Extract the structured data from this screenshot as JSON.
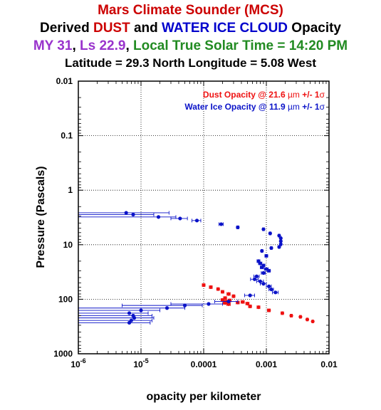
{
  "title": {
    "line1": "Mars Climate Sounder (MCS)",
    "line2_a": "Derived ",
    "line2_b": "DUST",
    "line2_c": " and ",
    "line2_d": "WATER ICE CLOUD",
    "line2_e": " Opacity",
    "line3_a": "MY 31",
    "line3_b": ", ",
    "line3_c": "Ls 22.9",
    "line3_d": ", ",
    "line3_e": "Local True Solar Time = 14:20 PM",
    "line4": "Latitude = 29.3 North   Longitude = 5.08 West"
  },
  "colors": {
    "title_red": "#cc0000",
    "title_blue": "#0000cc",
    "title_purple": "#9933cc",
    "title_green": "#228b22",
    "dust": "#ee1111",
    "ice": "#0a12c8"
  },
  "chart_data": {
    "type": "scatter",
    "xlabel": "opacity per kilometer",
    "ylabel": "Pressure (Pascals)",
    "xscale": "log",
    "yscale": "log",
    "xlim": [
      1e-06,
      0.01
    ],
    "ylim": [
      0.01,
      1000
    ],
    "y_inverted": true,
    "grid": true,
    "legend_position": "top-right",
    "x_ticks": [
      {
        "value": 1e-06,
        "base": "10",
        "exp": "-6"
      },
      {
        "value": 1e-05,
        "base": "10",
        "exp": "-5"
      },
      {
        "value": 0.0001,
        "label": "0.0001"
      },
      {
        "value": 0.001,
        "label": "0.001"
      },
      {
        "value": 0.01,
        "label": "0.01"
      }
    ],
    "y_ticks": [
      {
        "value": 0.01,
        "label": "0.01"
      },
      {
        "value": 0.1,
        "label": "0.1"
      },
      {
        "value": 1,
        "label": "1"
      },
      {
        "value": 10,
        "label": "10"
      },
      {
        "value": 100,
        "label": "100"
      },
      {
        "value": 1000,
        "label": "1000"
      }
    ],
    "series": [
      {
        "name": "Dust Opacity @ 21.6 µm +/- 1σ",
        "legend_text": "Dust Opacity @ 21.6 ",
        "legend_unit": "µm",
        "legend_pm": " +/- 1",
        "legend_sigma": "σ",
        "color": "#ee1111",
        "points": [
          {
            "x": 0.0001,
            "y": 55,
            "xerr": [
              9.5e-05,
              0.000105
            ]
          },
          {
            "x": 0.00013,
            "y": 60,
            "xerr": [
              0.000123,
              0.000137
            ]
          },
          {
            "x": 0.00017,
            "y": 65,
            "xerr": [
              0.000162,
              0.000178
            ]
          },
          {
            "x": 0.0002,
            "y": 73,
            "xerr": [
              0.00019,
              0.00021
            ]
          },
          {
            "x": 0.00025,
            "y": 80,
            "xerr": [
              0.000235,
              0.000265
            ]
          },
          {
            "x": 0.0003,
            "y": 88,
            "xerr": [
              0.000285,
              0.000315
            ]
          },
          {
            "x": 0.00022,
            "y": 95,
            "xerr": [
              0.000208,
              0.000232
            ]
          },
          {
            "x": 0.0002,
            "y": 103,
            "xerr": [
              0.000189,
              0.000211
            ]
          },
          {
            "x": 0.00023,
            "y": 110,
            "xerr": [
              0.000215,
              0.000245
            ]
          },
          {
            "x": 0.00026,
            "y": 105,
            "xerr": [
              0.000245,
              0.000275
            ]
          },
          {
            "x": 0.00022,
            "y": 117,
            "xerr": [
              0.000205,
              0.000235
            ]
          },
          {
            "x": 0.00025,
            "y": 123,
            "xerr": [
              0.000234,
              0.000266
            ]
          },
          {
            "x": 0.00035,
            "y": 115,
            "xerr": [
              0.00033,
              0.00037
            ]
          },
          {
            "x": 0.00042,
            "y": 112,
            "xerr": [
              0.000395,
              0.000445
            ]
          },
          {
            "x": 0.0005,
            "y": 120,
            "xerr": [
              0.00047,
              0.00053
            ]
          },
          {
            "x": 0.00055,
            "y": 135,
            "xerr": [
              0.00052,
              0.00058
            ]
          },
          {
            "x": 0.00075,
            "y": 140,
            "xerr": [
              0.00071,
              0.00079
            ]
          },
          {
            "x": 0.0011,
            "y": 160,
            "xerr": [
              0.00104,
              0.00116
            ]
          },
          {
            "x": 0.0018,
            "y": 180,
            "xerr": [
              0.00172,
              0.00188
            ]
          },
          {
            "x": 0.0025,
            "y": 200,
            "xerr": [
              0.0024,
              0.0026
            ]
          },
          {
            "x": 0.0035,
            "y": 210,
            "xerr": [
              0.00338,
              0.00362
            ]
          },
          {
            "x": 0.0045,
            "y": 235,
            "xerr": [
              0.00435,
              0.00465
            ]
          },
          {
            "x": 0.0055,
            "y": 255,
            "xerr": [
              0.00535,
              0.00565
            ]
          }
        ]
      },
      {
        "name": "Water Ice Opacity @ 11.9 µm +/- 1σ",
        "legend_text": "Water Ice Opacity @ 11.9 ",
        "legend_unit": "µm",
        "legend_pm": " +/- 1",
        "legend_sigma": "σ",
        "color": "#0a12c8",
        "points": [
          {
            "x": 5.8e-06,
            "y": 2.6,
            "xerr": [
              1e-06,
              2.8e-05
            ]
          },
          {
            "x": 7.5e-06,
            "y": 2.8,
            "xerr": [
              1e-06,
              1.6e-05
            ]
          },
          {
            "x": 1.9e-05,
            "y": 3.1,
            "xerr": [
              1e-06,
              3.6e-05
            ]
          },
          {
            "x": 4.2e-05,
            "y": 3.3,
            "xerr": [
              3e-05,
              5.5e-05
            ]
          },
          {
            "x": 7.8e-05,
            "y": 3.6,
            "xerr": [
              6.5e-05,
              9e-05
            ]
          },
          {
            "x": 0.00019,
            "y": 4.2,
            "xerr": [
              0.000175,
              0.000205
            ]
          },
          {
            "x": 0.00035,
            "y": 4.8,
            "xerr": [
              0.000335,
              0.000365
            ]
          },
          {
            "x": 0.0009,
            "y": 5.2,
            "xerr": [
              0.00087,
              0.00093
            ]
          },
          {
            "x": 0.00115,
            "y": 6.2,
            "xerr": [
              0.00111,
              0.00119
            ]
          },
          {
            "x": 0.0016,
            "y": 6.8,
            "xerr": [
              0.00155,
              0.00165
            ]
          },
          {
            "x": 0.0017,
            "y": 7.6,
            "xerr": [
              0.00165,
              0.00175
            ]
          },
          {
            "x": 0.0017,
            "y": 8.6,
            "xerr": [
              0.00165,
              0.00175
            ]
          },
          {
            "x": 0.0017,
            "y": 9.8,
            "xerr": [
              0.00165,
              0.00175
            ]
          },
          {
            "x": 0.0016,
            "y": 11,
            "xerr": [
              0.00155,
              0.00165
            ]
          },
          {
            "x": 0.0012,
            "y": 11.5,
            "xerr": [
              0.00116,
              0.00124
            ]
          },
          {
            "x": 0.00085,
            "y": 13,
            "xerr": [
              0.00082,
              0.00088
            ]
          },
          {
            "x": 0.001,
            "y": 16,
            "xerr": [
              0.00095,
              0.00105
            ]
          },
          {
            "x": 0.00075,
            "y": 20,
            "xerr": [
              0.00071,
              0.00079
            ]
          },
          {
            "x": 0.0008,
            "y": 22,
            "xerr": [
              0.00075,
              0.00085
            ]
          },
          {
            "x": 0.0009,
            "y": 24,
            "xerr": [
              0.00085,
              0.00095
            ]
          },
          {
            "x": 0.00085,
            "y": 26,
            "xerr": [
              0.0008,
              0.0009
            ]
          },
          {
            "x": 0.001,
            "y": 28,
            "xerr": [
              0.00093,
              0.00107
            ]
          },
          {
            "x": 0.0011,
            "y": 30,
            "xerr": [
              0.00104,
              0.00116
            ]
          },
          {
            "x": 0.0009,
            "y": 33,
            "xerr": [
              0.00083,
              0.00097
            ]
          },
          {
            "x": 0.0007,
            "y": 38,
            "xerr": [
              0.00063,
              0.00077
            ]
          },
          {
            "x": 0.00065,
            "y": 43,
            "xerr": [
              0.00056,
              0.00074
            ]
          },
          {
            "x": 0.0008,
            "y": 47,
            "xerr": [
              0.0007,
              0.0009
            ]
          },
          {
            "x": 0.0009,
            "y": 52,
            "xerr": [
              0.0008,
              0.001
            ]
          },
          {
            "x": 0.0011,
            "y": 58,
            "xerr": [
              0.001,
              0.0012
            ]
          },
          {
            "x": 0.0012,
            "y": 66,
            "xerr": [
              0.0011,
              0.0013
            ]
          },
          {
            "x": 0.0014,
            "y": 75,
            "xerr": [
              0.00125,
              0.00155
            ]
          },
          {
            "x": 0.00055,
            "y": 85,
            "xerr": [
              0.00045,
              0.00065
            ]
          },
          {
            "x": 0.00025,
            "y": 110,
            "xerr": [
              0.00015,
              0.00035
            ]
          },
          {
            "x": 0.00012,
            "y": 122,
            "xerr": [
              3e-05,
              0.0002
            ]
          },
          {
            "x": 5e-05,
            "y": 130,
            "xerr": [
              5e-06,
              9.5e-05
            ]
          },
          {
            "x": 2.6e-05,
            "y": 145,
            "xerr": [
              1e-06,
              5e-05
            ]
          },
          {
            "x": 1e-05,
            "y": 160,
            "xerr": [
              1e-06,
              2e-05
            ]
          },
          {
            "x": 6.5e-06,
            "y": 180,
            "xerr": [
              1e-06,
              1.3e-05
            ]
          },
          {
            "x": 7.5e-06,
            "y": 200,
            "xerr": [
              1e-06,
              1.5e-05
            ]
          },
          {
            "x": 7.8e-06,
            "y": 220,
            "xerr": [
              1e-06,
              1.6e-05
            ]
          },
          {
            "x": 7e-06,
            "y": 245,
            "xerr": [
              1e-06,
              1.5e-05
            ]
          },
          {
            "x": 6.5e-06,
            "y": 270,
            "xerr": [
              1e-06,
              1.4e-05
            ]
          }
        ]
      }
    ]
  }
}
